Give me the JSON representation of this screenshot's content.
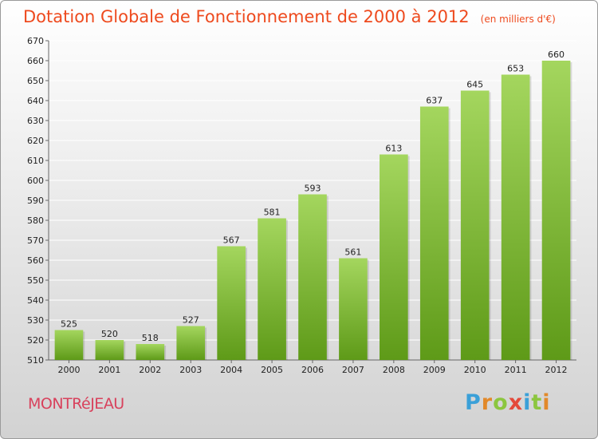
{
  "header": {
    "title": "Dotation Globale de Fonctionnement de 2000 à 2012",
    "subtitle": "(en milliers d'€)"
  },
  "footer": {
    "commune": "MONTRéJEAU",
    "logo_letters": [
      "P",
      "r",
      "o",
      "x",
      "i",
      "t",
      "i"
    ],
    "logo_colors": [
      "#3aa0d8",
      "#e2892a",
      "#8cc63f",
      "#e4493a",
      "#3aa0d8",
      "#8cc63f",
      "#e2892a"
    ]
  },
  "colors": {
    "bar_light": "#a4d65e",
    "bar_dark": "#5e9a18",
    "grid": "#ffffff",
    "accent": "#ee4a1e"
  },
  "chart_data": {
    "type": "bar",
    "title": "Dotation Globale de Fonctionnement de 2000 à 2012",
    "subtitle": "(en milliers d'€)",
    "categories": [
      "2000",
      "2001",
      "2002",
      "2003",
      "2004",
      "2005",
      "2006",
      "2007",
      "2008",
      "2009",
      "2010",
      "2011",
      "2012"
    ],
    "values": [
      525,
      520,
      518,
      527,
      567,
      581,
      593,
      561,
      613,
      637,
      645,
      653,
      660
    ],
    "ylim": [
      510,
      670
    ],
    "yticks": [
      510,
      520,
      530,
      540,
      550,
      560,
      570,
      580,
      590,
      600,
      610,
      620,
      630,
      640,
      650,
      660,
      670
    ],
    "grid": true,
    "data_labels": true
  }
}
